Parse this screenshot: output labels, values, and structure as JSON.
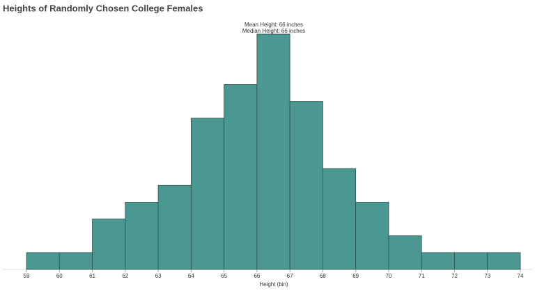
{
  "chart_data": {
    "type": "histogram",
    "title": "Heights of Randomly Chosen College Females",
    "annotations": [
      "Mean Height: 66 inches",
      "Median Height: 66 inches"
    ],
    "xlabel": "Height (bin)",
    "bins": [
      59,
      60,
      61,
      62,
      63,
      64,
      65,
      66,
      67,
      68,
      69,
      70,
      71,
      72,
      73,
      74
    ],
    "counts": [
      1,
      1,
      3,
      4,
      5,
      9,
      11,
      14,
      10,
      6,
      4,
      2,
      1,
      1,
      1
    ],
    "color": "#4a9891",
    "xlim": [
      59,
      74
    ],
    "xticks": [
      59,
      60,
      61,
      62,
      63,
      64,
      65,
      66,
      67,
      68,
      69,
      70,
      71,
      72,
      73,
      74
    ]
  }
}
